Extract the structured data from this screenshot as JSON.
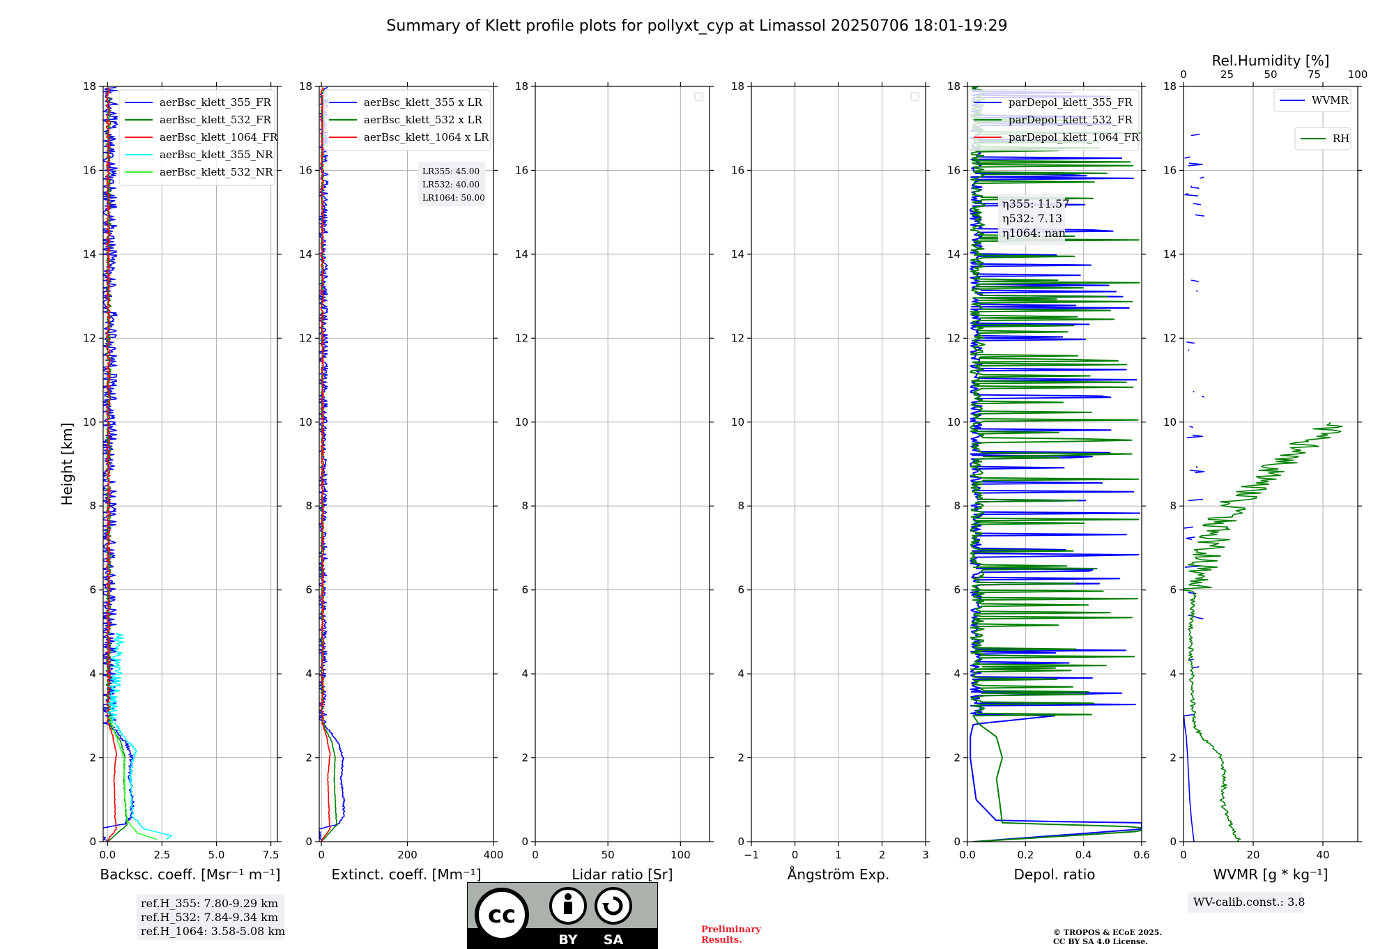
{
  "title": "Summary of Klett profile plots for pollyxt_cyp at Limassol 20250706 18:01-19:29",
  "colors": {
    "c355": "#0000ff",
    "c532": "#007f00",
    "c1064": "#ff0000",
    "c355nr": "#00ffff",
    "c532nr": "#33ff33",
    "grid": "#b0b0b0"
  },
  "chart_data": [
    {
      "type": "line",
      "id": "backscatter",
      "xlabel": "Backsc. coeff. [Msr⁻¹ m⁻¹]",
      "ylabel": "Height [km]",
      "xlim": [
        -0.2,
        7.8
      ],
      "ylim": [
        0,
        18
      ],
      "xticks": [
        0,
        2.5,
        5,
        7.5
      ],
      "xticklabels": [
        "0.0",
        "2.5",
        "5.0",
        "7.5"
      ],
      "yticks": [
        0,
        2,
        4,
        6,
        8,
        10,
        12,
        14,
        16,
        18
      ],
      "grid": true,
      "legend": "top-right",
      "series": [
        {
          "name": "aerBsc_klett_355_FR",
          "color": "#0000ff",
          "noise_amp": 0.35,
          "profile": [
            [
              0,
              0.0
            ],
            [
              0.3,
              -0.5
            ],
            [
              0.42,
              0.8
            ],
            [
              0.6,
              1.1
            ],
            [
              1.0,
              1.15
            ],
            [
              1.5,
              1.0
            ],
            [
              2.0,
              1.1
            ],
            [
              2.3,
              0.9
            ],
            [
              2.6,
              0.5
            ],
            [
              2.8,
              0.1
            ],
            [
              3.0,
              0.05
            ],
            [
              18,
              0.12
            ]
          ]
        },
        {
          "name": "aerBsc_klett_532_FR",
          "color": "#007f00",
          "noise_amp": 0.1,
          "profile": [
            [
              0,
              0.0
            ],
            [
              0.4,
              0.9
            ],
            [
              0.6,
              0.85
            ],
            [
              1.5,
              0.75
            ],
            [
              2.0,
              0.8
            ],
            [
              2.4,
              0.6
            ],
            [
              2.7,
              0.2
            ],
            [
              3.0,
              0.05
            ],
            [
              18,
              0.05
            ]
          ]
        },
        {
          "name": "aerBsc_klett_1064_FR",
          "color": "#ff0000",
          "noise_amp": 0.08,
          "profile": [
            [
              0,
              0.0
            ],
            [
              0.1,
              0.1
            ],
            [
              0.3,
              0.4
            ],
            [
              0.6,
              0.35
            ],
            [
              1.5,
              0.3
            ],
            [
              2.1,
              0.4
            ],
            [
              2.5,
              0.25
            ],
            [
              2.8,
              0.05
            ],
            [
              18,
              0.03
            ]
          ]
        },
        {
          "name": "aerBsc_klett_355_NR",
          "color": "#00ffff",
          "noise_amp": 0.25,
          "profile": [
            [
              0.05,
              2.7
            ],
            [
              0.15,
              2.9
            ],
            [
              0.3,
              1.7
            ],
            [
              0.6,
              1.15
            ],
            [
              1.0,
              1.1
            ],
            [
              1.6,
              1.05
            ],
            [
              2.2,
              1.3
            ],
            [
              2.6,
              0.6
            ],
            [
              3.0,
              0.2
            ],
            [
              4.0,
              0.4
            ],
            [
              5.0,
              0.6
            ]
          ]
        },
        {
          "name": "aerBsc_klett_532_NR",
          "color": "#33ff33",
          "noise_amp": 0.1,
          "profile": [
            [
              0.05,
              2.3
            ],
            [
              0.2,
              1.4
            ],
            [
              0.5,
              0.9
            ],
            [
              1.0,
              0.8
            ],
            [
              2.0,
              0.75
            ],
            [
              2.5,
              0.4
            ],
            [
              3.0,
              0.05
            ]
          ]
        }
      ],
      "textbox": [
        "ref.H_355: 7.80-9.29 km",
        "ref.H_532: 7.84-9.34 km",
        "ref.H_1064: 3.58-5.08 km"
      ]
    },
    {
      "type": "line",
      "id": "extinction",
      "xlabel": "Extinct. coeff. [Mm⁻¹]",
      "xlim": [
        -5,
        400
      ],
      "ylim": [
        0,
        18
      ],
      "xticks": [
        0,
        200,
        400
      ],
      "xticklabels": [
        "0",
        "200",
        "400"
      ],
      "yticks": [
        0,
        2,
        4,
        6,
        8,
        10,
        12,
        14,
        16,
        18
      ],
      "grid": true,
      "legend": "top-right",
      "series": [
        {
          "name": "aerBsc_klett_355 x LR",
          "color": "#0000ff",
          "noise_amp": 10,
          "profile": [
            [
              0,
              0
            ],
            [
              0.3,
              -5
            ],
            [
              0.42,
              40
            ],
            [
              0.6,
              52
            ],
            [
              1.0,
              52
            ],
            [
              1.5,
              46
            ],
            [
              2.0,
              50
            ],
            [
              2.3,
              42
            ],
            [
              2.6,
              22
            ],
            [
              2.8,
              5
            ],
            [
              3.0,
              3
            ],
            [
              18,
              6
            ]
          ]
        },
        {
          "name": "aerBsc_klett_532 x LR",
          "color": "#007f00",
          "noise_amp": 3,
          "profile": [
            [
              0,
              0
            ],
            [
              0.4,
              36
            ],
            [
              0.6,
              34
            ],
            [
              1.5,
              30
            ],
            [
              2.0,
              32
            ],
            [
              2.4,
              24
            ],
            [
              2.7,
              8
            ],
            [
              3.0,
              2
            ],
            [
              18,
              2
            ]
          ]
        },
        {
          "name": "aerBsc_klett_1064 x LR",
          "color": "#ff0000",
          "noise_amp": 3,
          "profile": [
            [
              0,
              0
            ],
            [
              0.1,
              5
            ],
            [
              0.3,
              20
            ],
            [
              0.6,
              18
            ],
            [
              1.5,
              15
            ],
            [
              2.1,
              20
            ],
            [
              2.5,
              12
            ],
            [
              2.8,
              3
            ],
            [
              18,
              2
            ]
          ]
        }
      ],
      "annotation": [
        "LR355: 45.00",
        "LR532: 40.00",
        "LR1064: 50.00"
      ]
    },
    {
      "type": "line",
      "id": "lidar_ratio",
      "xlabel": "Lidar ratio [Sr]",
      "xlim": [
        0,
        120
      ],
      "ylim": [
        0,
        18
      ],
      "xticks": [
        0,
        50,
        100
      ],
      "xticklabels": [
        "0",
        "50",
        "100"
      ],
      "yticks": [
        0,
        2,
        4,
        6,
        8,
        10,
        12,
        14,
        16,
        18
      ],
      "grid": true,
      "series": []
    },
    {
      "type": "line",
      "id": "angstrom",
      "xlabel": "Ångström Exp.",
      "xlim": [
        -1,
        3
      ],
      "ylim": [
        0,
        18
      ],
      "xticks": [
        -1,
        0,
        1,
        2,
        3
      ],
      "xticklabels": [
        "−1",
        "0",
        "1",
        "2",
        "3"
      ],
      "yticks": [
        0,
        2,
        4,
        6,
        8,
        10,
        12,
        14,
        16,
        18
      ],
      "grid": true,
      "series": []
    },
    {
      "type": "line",
      "id": "depol",
      "xlabel": "Depol. ratio",
      "xlim": [
        0,
        0.6
      ],
      "ylim": [
        0,
        18
      ],
      "xticks": [
        0,
        0.2,
        0.4,
        0.6
      ],
      "xticklabels": [
        "0.0",
        "0.2",
        "0.4",
        "0.6"
      ],
      "yticks": [
        0,
        2,
        4,
        6,
        8,
        10,
        12,
        14,
        16,
        18
      ],
      "grid": true,
      "legend": "top-right",
      "series": [
        {
          "name": "parDepol_klett_355_FR",
          "color": "#0000ff",
          "profile": [
            [
              0,
              0.02
            ],
            [
              0.3,
              0.6
            ],
            [
              0.45,
              0.6
            ],
            [
              0.5,
              0.1
            ],
            [
              1.0,
              0.03
            ],
            [
              2.0,
              0.01
            ],
            [
              2.5,
              0.01
            ],
            [
              2.8,
              0.02
            ],
            [
              3.0,
              0.3
            ],
            [
              18,
              0.3
            ]
          ]
        },
        {
          "name": "parDepol_klett_532_FR",
          "color": "#007f00",
          "profile": [
            [
              0,
              0.02
            ],
            [
              0.25,
              0.6
            ],
            [
              0.35,
              0.6
            ],
            [
              0.45,
              0.12
            ],
            [
              1.0,
              0.11
            ],
            [
              1.5,
              0.1
            ],
            [
              2.0,
              0.12
            ],
            [
              2.5,
              0.1
            ],
            [
              2.8,
              0.04
            ],
            [
              3.0,
              0.02
            ],
            [
              6.0,
              0.02
            ],
            [
              18,
              0.02
            ]
          ]
        },
        {
          "name": "parDepol_klett_1064_FR",
          "color": "#ff0000",
          "profile": []
        }
      ],
      "annotation": [
        "η355: 11.57",
        "η532: 7.13",
        "η1064: nan"
      ]
    },
    {
      "type": "line",
      "id": "wvmr",
      "xlabel": "WVMR [g * kg⁻¹]",
      "top_xlabel": "Rel.Humidity [%]",
      "xlim": [
        0,
        50
      ],
      "top_xlim": [
        0,
        100
      ],
      "ylim": [
        0,
        18
      ],
      "xticks": [
        0,
        20,
        40
      ],
      "xticklabels": [
        "0",
        "20",
        "40"
      ],
      "top_xticks": [
        0,
        25,
        50,
        75,
        100
      ],
      "top_xticklabels": [
        "0",
        "25",
        "50",
        "75",
        "100"
      ],
      "yticks": [
        0,
        2,
        4,
        6,
        8,
        10,
        12,
        14,
        16,
        18
      ],
      "grid": true,
      "series": [
        {
          "name": "WVMR",
          "color": "#0000ff",
          "profile": [
            [
              0,
              3.0
            ],
            [
              0.5,
              2.3
            ],
            [
              1.0,
              1.8
            ],
            [
              1.5,
              1.5
            ],
            [
              2.0,
              1.2
            ],
            [
              2.5,
              0.8
            ],
            [
              2.8,
              0.3
            ],
            [
              3.0,
              0.1
            ],
            [
              18,
              0.1
            ]
          ]
        },
        {
          "name": "RH",
          "color": "#007f00",
          "profile": [
            [
              0,
              32
            ],
            [
              0.5,
              26
            ],
            [
              1.0,
              22
            ],
            [
              1.5,
              24
            ],
            [
              2.0,
              22
            ],
            [
              2.2,
              18
            ],
            [
              2.5,
              10
            ],
            [
              2.8,
              6
            ],
            [
              3.5,
              5
            ],
            [
              5.0,
              4
            ],
            [
              6.0,
              6
            ],
            [
              6.5,
              10
            ],
            [
              7.0,
              14
            ],
            [
              7.5,
              20
            ],
            [
              8.0,
              28
            ],
            [
              8.5,
              40
            ],
            [
              9.0,
              55
            ],
            [
              9.5,
              70
            ],
            [
              10.0,
              90
            ]
          ]
        }
      ],
      "annotation": [
        "WV-calib.const.: 3.8"
      ]
    }
  ],
  "footer": {
    "preliminary": "Preliminary Results.",
    "copyright_line1": "© TROPOS & ECoE 2025.",
    "copyright_line2": "CC BY SA 4.0 License.",
    "license_by": "BY",
    "license_sa": "SA",
    "license_cc": "cc"
  }
}
